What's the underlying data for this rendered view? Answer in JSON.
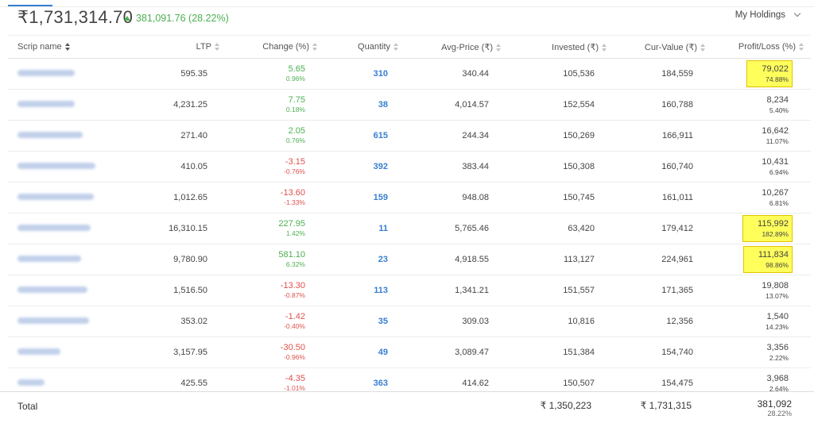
{
  "summary": {
    "total_value": "₹1,731,314.70",
    "day_change": "381,091.76 (28.22%)",
    "holdings_filter": "My Holdings"
  },
  "columns": [
    "Scrip name",
    "LTP",
    "Change (%)",
    "Quantity",
    "Avg-Price (₹)",
    "Invested (₹)",
    "Cur-Value (₹)",
    "Profit/Loss (%)"
  ],
  "rows": [
    {
      "ltp": "595.35",
      "change": "5.65",
      "change_pct": "0.96%",
      "dir": "pos",
      "qty": "310",
      "avg": "340.44",
      "invested": "105,536",
      "cur": "184,559",
      "pl": "79,022",
      "pl_pct": "74.88%",
      "hl": true
    },
    {
      "ltp": "4,231.25",
      "change": "7.75",
      "change_pct": "0.18%",
      "dir": "pos",
      "qty": "38",
      "avg": "4,014.57",
      "invested": "152,554",
      "cur": "160,788",
      "pl": "8,234",
      "pl_pct": "5.40%",
      "hl": false
    },
    {
      "ltp": "271.40",
      "change": "2.05",
      "change_pct": "0.76%",
      "dir": "pos",
      "qty": "615",
      "avg": "244.34",
      "invested": "150,269",
      "cur": "166,911",
      "pl": "16,642",
      "pl_pct": "11.07%",
      "hl": false
    },
    {
      "ltp": "410.05",
      "change": "-3.15",
      "change_pct": "-0.76%",
      "dir": "neg",
      "qty": "392",
      "avg": "383.44",
      "invested": "150,308",
      "cur": "160,740",
      "pl": "10,431",
      "pl_pct": "6.94%",
      "hl": false
    },
    {
      "ltp": "1,012.65",
      "change": "-13.60",
      "change_pct": "-1.33%",
      "dir": "neg",
      "qty": "159",
      "avg": "948.08",
      "invested": "150,745",
      "cur": "161,011",
      "pl": "10,267",
      "pl_pct": "6.81%",
      "hl": false
    },
    {
      "ltp": "16,310.15",
      "change": "227.95",
      "change_pct": "1.42%",
      "dir": "pos",
      "qty": "11",
      "avg": "5,765.46",
      "invested": "63,420",
      "cur": "179,412",
      "pl": "115,992",
      "pl_pct": "182.89%",
      "hl": true
    },
    {
      "ltp": "9,780.90",
      "change": "581.10",
      "change_pct": "6.32%",
      "dir": "pos",
      "qty": "23",
      "avg": "4,918.55",
      "invested": "113,127",
      "cur": "224,961",
      "pl": "111,834",
      "pl_pct": "98.86%",
      "hl": true
    },
    {
      "ltp": "1,516.50",
      "change": "-13.30",
      "change_pct": "-0.87%",
      "dir": "neg",
      "qty": "113",
      "avg": "1,341.21",
      "invested": "151,557",
      "cur": "171,365",
      "pl": "19,808",
      "pl_pct": "13.07%",
      "hl": false
    },
    {
      "ltp": "353.02",
      "change": "-1.42",
      "change_pct": "-0.40%",
      "dir": "neg",
      "qty": "35",
      "avg": "309.03",
      "invested": "10,816",
      "cur": "12,356",
      "pl": "1,540",
      "pl_pct": "14.23%",
      "hl": false
    },
    {
      "ltp": "3,157.95",
      "change": "-30.50",
      "change_pct": "-0.96%",
      "dir": "neg",
      "qty": "49",
      "avg": "3,089.47",
      "invested": "151,384",
      "cur": "154,740",
      "pl": "3,356",
      "pl_pct": "2.22%",
      "hl": false
    },
    {
      "ltp": "425.55",
      "change": "-4.35",
      "change_pct": "-1.01%",
      "dir": "neg",
      "qty": "363",
      "avg": "414.62",
      "invested": "150,507",
      "cur": "154,475",
      "pl": "3,968",
      "pl_pct": "2.64%",
      "hl": false
    }
  ],
  "footer": {
    "label": "Total",
    "invested": "₹ 1,350,223",
    "cur_value": "₹ 1,731,315",
    "pl": "381,092",
    "pl_pct": "28.22%"
  },
  "colors": {
    "positive": "#4caf50",
    "negative": "#df514c",
    "quantity": "#387ed1",
    "highlight": "#ffff5c"
  }
}
